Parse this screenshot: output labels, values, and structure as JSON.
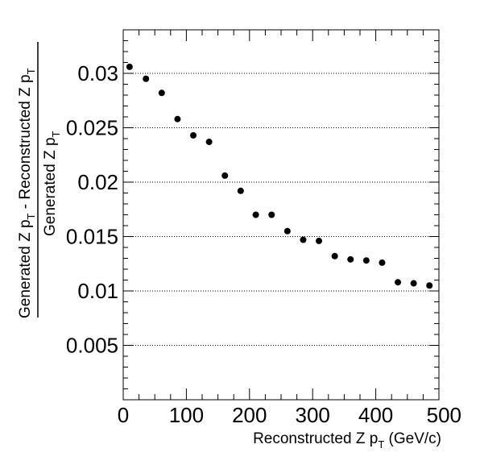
{
  "chart_data": {
    "type": "scatter",
    "x": [
      10,
      36,
      61,
      86,
      111,
      136,
      161,
      186,
      210,
      235,
      260,
      285,
      310,
      335,
      360,
      385,
      410,
      435,
      460,
      485
    ],
    "y": [
      0.0306,
      0.0295,
      0.0282,
      0.0258,
      0.0243,
      0.0237,
      0.0206,
      0.0192,
      0.017,
      0.017,
      0.0155,
      0.0147,
      0.0146,
      0.0132,
      0.0129,
      0.0128,
      0.0126,
      0.0108,
      0.0107,
      0.0105
    ],
    "xlim": [
      0,
      500
    ],
    "ylim": [
      0,
      0.034
    ],
    "xticks": [
      0,
      100,
      200,
      300,
      400,
      500
    ],
    "xtick_labels": [
      "0",
      "100",
      "200",
      "300",
      "400",
      "500"
    ],
    "yticks": [
      0.005,
      0.01,
      0.015,
      0.02,
      0.025,
      0.03
    ],
    "ytick_labels": [
      "0.005",
      "0.01",
      "0.015",
      "0.02",
      "0.025",
      "0.03"
    ],
    "grid": "horizontal dotted",
    "marker_color": "#000000",
    "xlabel": {
      "main": "Reconstructed Z p",
      "sub": "T",
      "suffix": " (GeV/c)"
    },
    "ylabel": {
      "numerator_a": "Generated Z p",
      "numerator_a_sub": "T",
      "numerator_b": " - Reconstructed Z p",
      "numerator_b_sub": "T",
      "denominator": "Generated Z p",
      "denominator_sub": "T"
    }
  }
}
